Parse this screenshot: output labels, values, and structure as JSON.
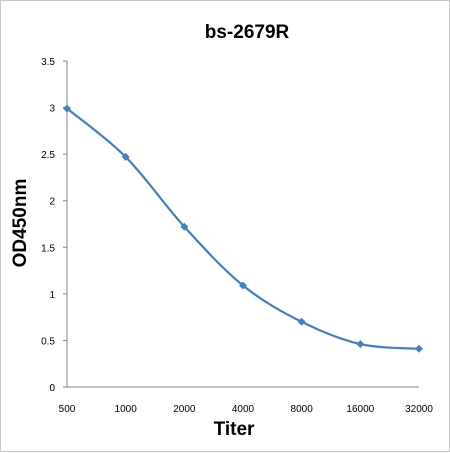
{
  "chart_data": {
    "type": "line",
    "title": "bs-2679R",
    "xlabel": "Titer",
    "ylabel": "OD450nm",
    "categories": [
      "500",
      "1000",
      "2000",
      "4000",
      "8000",
      "16000",
      "32000"
    ],
    "y_ticks": [
      "0",
      "0.5",
      "1",
      "1.5",
      "2",
      "2.5",
      "3",
      "3.5"
    ],
    "ylim": [
      0,
      3.5
    ],
    "series": [
      {
        "values": [
          2.99,
          2.47,
          1.72,
          1.09,
          0.7,
          0.46,
          0.41
        ],
        "color": "#4a7ebb",
        "marker": "diamond",
        "smooth": true
      }
    ],
    "grid": false,
    "legend": "none"
  }
}
